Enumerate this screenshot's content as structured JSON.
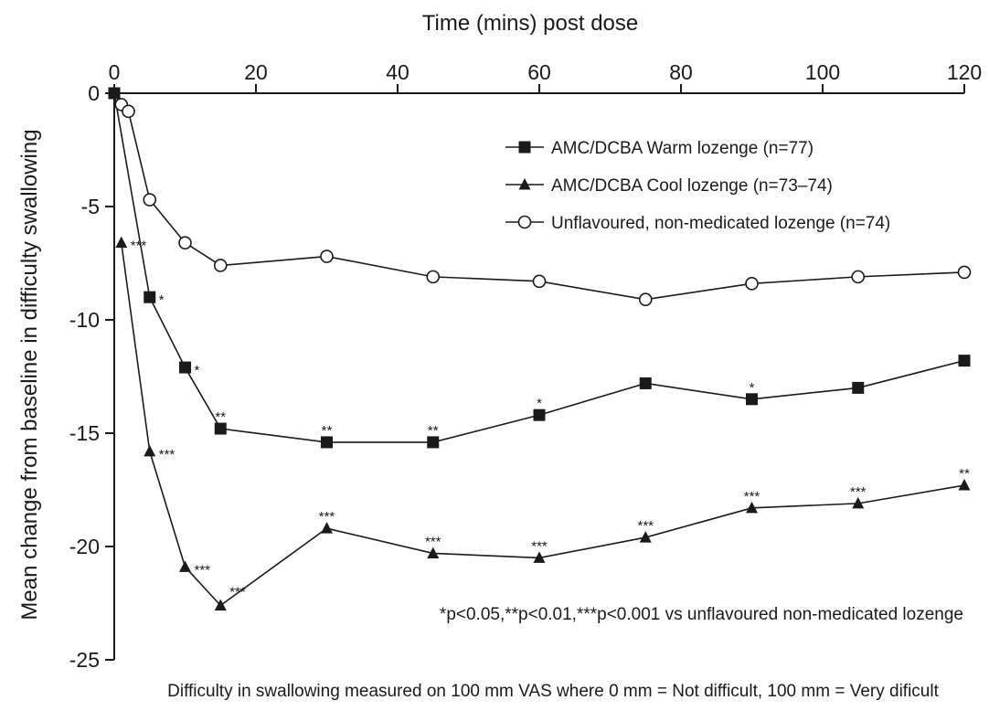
{
  "chart_data": {
    "type": "line",
    "title": "",
    "xlabel": "Time (mins) post dose",
    "ylabel": "Mean change from baseline in difficulty swallowing",
    "xlim": [
      0,
      120
    ],
    "ylim": [
      -25,
      0
    ],
    "x_ticks": [
      0,
      20,
      40,
      60,
      80,
      100,
      120
    ],
    "y_ticks": [
      0,
      -5,
      -10,
      -15,
      -20,
      -25
    ],
    "y_tick_labels": [
      "0",
      "-5",
      "-10",
      "-15",
      "-20",
      "-25"
    ],
    "legend_position": "top-right",
    "grid": false,
    "series": [
      {
        "name": "AMC/DCBA Warm lozenge (n=77)",
        "marker": "square",
        "x": [
          0,
          5,
          10,
          15,
          30,
          45,
          60,
          75,
          90,
          105,
          120
        ],
        "y": [
          0,
          -9.0,
          -12.1,
          -14.8,
          -15.4,
          -15.4,
          -14.2,
          -12.8,
          -13.5,
          -13.0,
          -11.8
        ],
        "significance": [
          "",
          "*",
          "*",
          "**",
          "**",
          "**",
          "*",
          "",
          "*",
          "",
          ""
        ]
      },
      {
        "name": "AMC/DCBA Cool lozenge (n=73–74)",
        "marker": "triangle",
        "x": [
          1,
          5,
          10,
          15,
          30,
          45,
          60,
          75,
          90,
          105,
          120
        ],
        "y": [
          -6.6,
          -15.8,
          -20.9,
          -22.6,
          -19.2,
          -20.3,
          -20.5,
          -19.6,
          -18.3,
          -18.1,
          -17.3
        ],
        "significance": [
          "***",
          "***",
          "***",
          "***",
          "***",
          "***",
          "***",
          "***",
          "***",
          "***",
          "**"
        ]
      },
      {
        "name": "Unflavoured, non-medicated lozenge (n=74)",
        "marker": "circle-open",
        "x": [
          1,
          2,
          5,
          10,
          15,
          30,
          45,
          60,
          75,
          90,
          105,
          120
        ],
        "y": [
          -0.5,
          -0.8,
          -4.7,
          -6.6,
          -7.6,
          -7.2,
          -8.1,
          -8.3,
          -9.1,
          -8.4,
          -8.1,
          -7.9
        ],
        "significance": [
          "",
          "",
          "",
          "",
          "",
          "",
          "",
          "",
          "",
          "",
          "",
          ""
        ]
      }
    ],
    "footnote": "*p<0.05,**p<0.01,***p<0.001 vs unflavoured non-medicated lozenge",
    "caption": "Difficulty in swallowing measured on 100 mm VAS where 0 mm = Not difficult, 100 mm = Very dificult"
  }
}
